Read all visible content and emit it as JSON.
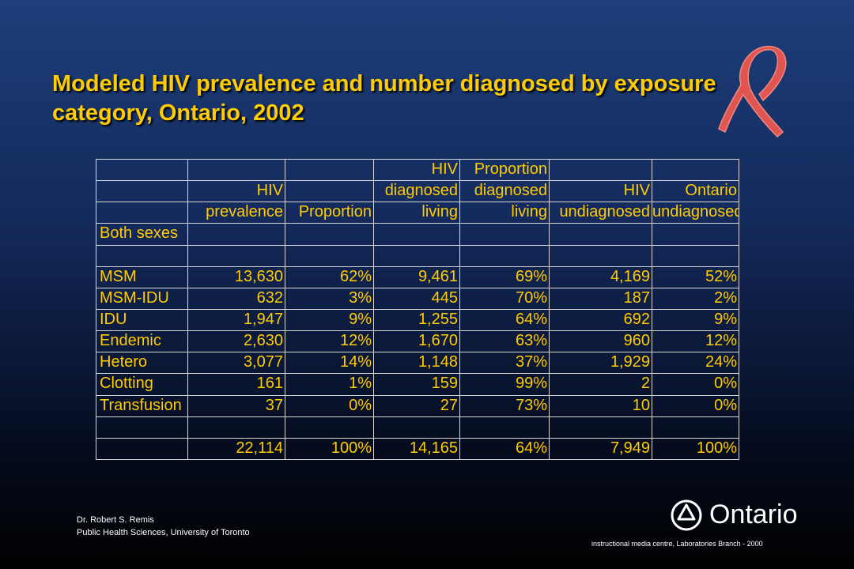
{
  "title": "Modeled HIV prevalence and number diagnosed by exposure category, Ontario, 2002",
  "table": {
    "header": [
      [],
      [
        "HIV",
        "prevalence"
      ],
      [
        "Proportion"
      ],
      [
        "HIV",
        "diagnosed",
        "living"
      ],
      [
        "Proportion",
        "diagnosed",
        "living"
      ],
      [
        "HIV",
        "undiagnosed"
      ],
      [
        "Ontario",
        "undiagnosed"
      ]
    ],
    "group": "Both sexes",
    "rows": [
      {
        "label": "MSM",
        "cells": [
          "13,630",
          "62%",
          "9,461",
          "69%",
          "4,169",
          "52%"
        ]
      },
      {
        "label": "MSM-IDU",
        "cells": [
          "632",
          "3%",
          "445",
          "70%",
          "187",
          "2%"
        ]
      },
      {
        "label": "IDU",
        "cells": [
          "1,947",
          "9%",
          "1,255",
          "64%",
          "692",
          "9%"
        ]
      },
      {
        "label": "Endemic",
        "cells": [
          "2,630",
          "12%",
          "1,670",
          "63%",
          "960",
          "12%"
        ]
      },
      {
        "label": "Hetero",
        "cells": [
          "3,077",
          "14%",
          "1,148",
          "37%",
          "1,929",
          "24%"
        ]
      },
      {
        "label": "Clotting",
        "cells": [
          "161",
          "1%",
          "159",
          "99%",
          "2",
          "0%"
        ]
      },
      {
        "label": "Transfusion",
        "cells": [
          "37",
          "0%",
          "27",
          "73%",
          "10",
          "0%"
        ]
      }
    ],
    "total": [
      "22,114",
      "100%",
      "14,165",
      "64%",
      "7,949",
      "100%"
    ]
  },
  "footer": {
    "author": "Dr. Robert S. Remis",
    "affiliation": "Public Health Sciences, University of Toronto",
    "logo": "Ontario",
    "credit": "instructional media centre, Laboratories Branch - 2000"
  }
}
